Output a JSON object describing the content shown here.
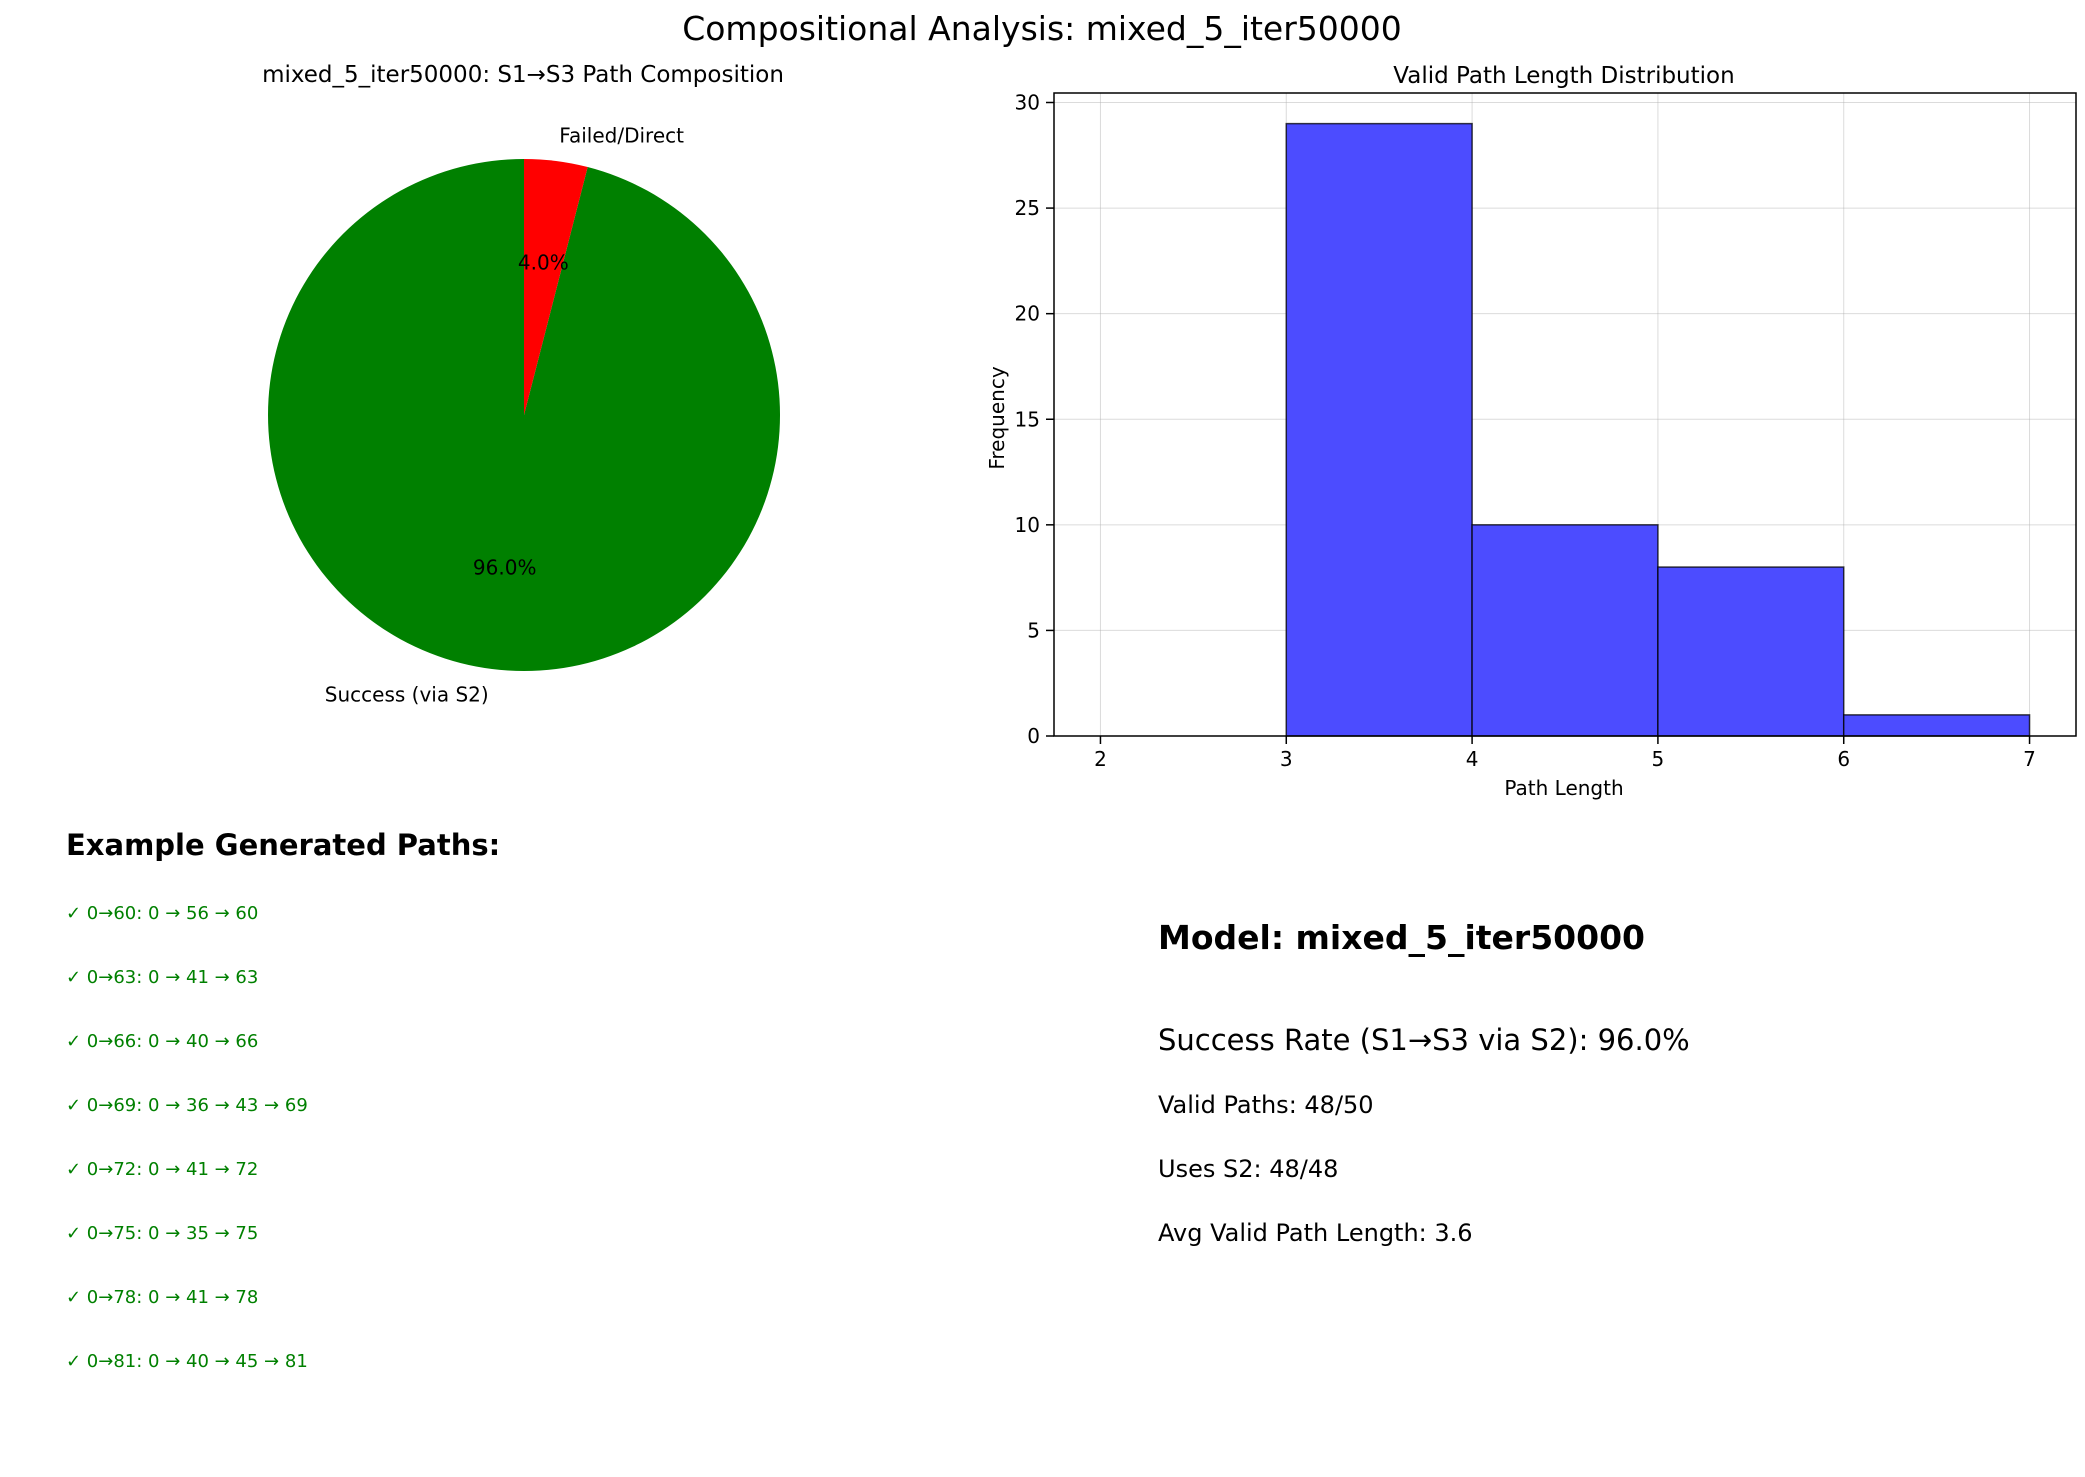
{
  "figure": {
    "suptitle": "Compositional Analysis: mixed_5_iter50000"
  },
  "chart_data": [
    {
      "type": "pie",
      "title": "mixed_5_iter50000: S1→S3 Path Composition",
      "labels": [
        "Success (via S2)",
        "Failed/Direct"
      ],
      "values": [
        96.0,
        4.0
      ],
      "autopct": [
        "96.0%",
        "4.0%"
      ],
      "colors": [
        "#008000",
        "#ff0000"
      ],
      "start_angle": 90,
      "direction": "counterclockwise"
    },
    {
      "type": "bar",
      "subtype": "histogram",
      "title": "Valid Path Length Distribution",
      "xlabel": "Path Length",
      "ylabel": "Frequency",
      "bins": [
        [
          2,
          3
        ],
        [
          3,
          4
        ],
        [
          4,
          5
        ],
        [
          5,
          6
        ],
        [
          6,
          7
        ]
      ],
      "values": [
        0,
        29,
        10,
        8,
        1
      ],
      "xlim": [
        1.75,
        7.25
      ],
      "ylim": [
        0,
        30.45
      ],
      "xticks": [
        2,
        3,
        4,
        5,
        6,
        7
      ],
      "yticks": [
        0,
        5,
        10,
        15,
        20,
        25,
        30
      ],
      "grid": true,
      "bar_color": "#4c4cff",
      "edge_color": "#000000"
    }
  ],
  "paths": {
    "title": "Example Generated Paths:",
    "items": [
      "✓ 0→60: 0 → 56 → 60",
      "✓ 0→63: 0 → 41 → 63",
      "✓ 0→66: 0 → 40 → 66",
      "✓ 0→69: 0 → 36 → 43 → 69",
      "✓ 0→72: 0 → 41 → 72",
      "✓ 0→75: 0 → 35 → 75",
      "✓ 0→78: 0 → 41 → 78",
      "✓ 0→81: 0 → 40 → 45 → 81"
    ]
  },
  "stats": {
    "model": "Model: mixed_5_iter50000",
    "success_rate": "Success Rate (S1→S3 via S2): 96.0%",
    "valid_paths": "Valid Paths: 48/50",
    "uses_s2": "Uses S2: 48/48",
    "avg_length": "Avg Valid Path Length: 3.6"
  }
}
